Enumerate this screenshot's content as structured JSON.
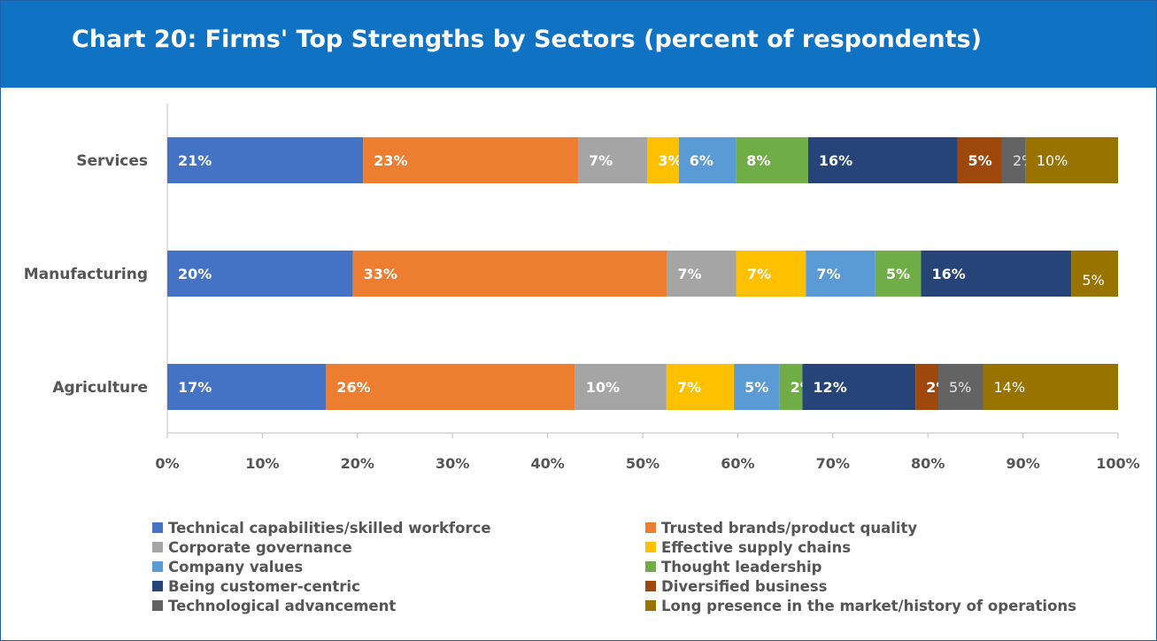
{
  "title": "Chart 20: Firms' Top Strengths by Sectors (percent of respondents)",
  "chart_data": {
    "type": "bar",
    "orientation": "horizontal",
    "stacked": true,
    "title": "Chart 20: Firms' Top Strengths by Sectors (percent of respondents)",
    "categories": [
      "Services",
      "Manufacturing",
      "Agriculture"
    ],
    "x_ticks": [
      "0%",
      "10%",
      "20%",
      "30%",
      "40%",
      "50%",
      "60%",
      "70%",
      "80%",
      "90%",
      "100%"
    ],
    "xlim": [
      0,
      100
    ],
    "grid": false,
    "legend_position": "bottom",
    "series": [
      {
        "name": "Technical capabilities/skilled workforce",
        "color": "#4472c4",
        "label_color": "#ffffff",
        "label_bold": true,
        "values": [
          20.6,
          19.5,
          16.7
        ],
        "labels": [
          "21%",
          "20%",
          "17%"
        ]
      },
      {
        "name": "Trusted brands/product quality",
        "color": "#ed7d31",
        "label_color": "#ffffff",
        "label_bold": true,
        "values": [
          22.6,
          33.0,
          26.2
        ],
        "labels": [
          "23%",
          "33%",
          "26%"
        ]
      },
      {
        "name": "Corporate governance",
        "color": "#a5a5a5",
        "label_color": "#ffffff",
        "label_bold": true,
        "values": [
          7.3,
          7.3,
          9.6
        ],
        "labels": [
          "7%",
          "7%",
          "10%"
        ]
      },
      {
        "name": "Effective supply chains",
        "color": "#ffc000",
        "label_color": "#ffffff",
        "label_bold": true,
        "values": [
          3.3,
          7.3,
          7.1
        ],
        "labels": [
          "3%",
          "7%",
          "7%"
        ]
      },
      {
        "name": "Company values",
        "color": "#5b9bd5",
        "label_color": "#ffffff",
        "label_bold": true,
        "values": [
          6.0,
          7.3,
          4.8
        ],
        "labels": [
          "6%",
          "7%",
          "5%"
        ]
      },
      {
        "name": "Thought leadership",
        "color": "#70ad47",
        "label_color": "#ffffff",
        "label_bold": true,
        "values": [
          7.6,
          4.8,
          2.4
        ],
        "labels": [
          "8%",
          "5%",
          "2%"
        ]
      },
      {
        "name": "Being customer-centric",
        "color": "#264478",
        "label_color": "#ffffff",
        "label_bold": true,
        "values": [
          15.7,
          15.8,
          11.9
        ],
        "labels": [
          "16%",
          "16%",
          "12%"
        ]
      },
      {
        "name": "Diversified business",
        "color": "#9e480e",
        "label_color": "#ffffff",
        "label_bold": true,
        "values": [
          4.7,
          0,
          2.4
        ],
        "labels": [
          "5%",
          "",
          "2%"
        ]
      },
      {
        "name": "Technological advancement",
        "color": "#636363",
        "label_color": "#e6e6e6",
        "label_bold": false,
        "values": [
          2.5,
          0,
          4.7
        ],
        "labels": [
          "2%",
          "",
          "5%"
        ]
      },
      {
        "name": "Long presence in the market/history of operations",
        "color": "#997300",
        "label_color": "#ffffff",
        "label_bold": false,
        "values": [
          9.7,
          4.9,
          14.2
        ],
        "labels": [
          "10%",
          "5%",
          "14%"
        ]
      }
    ]
  }
}
